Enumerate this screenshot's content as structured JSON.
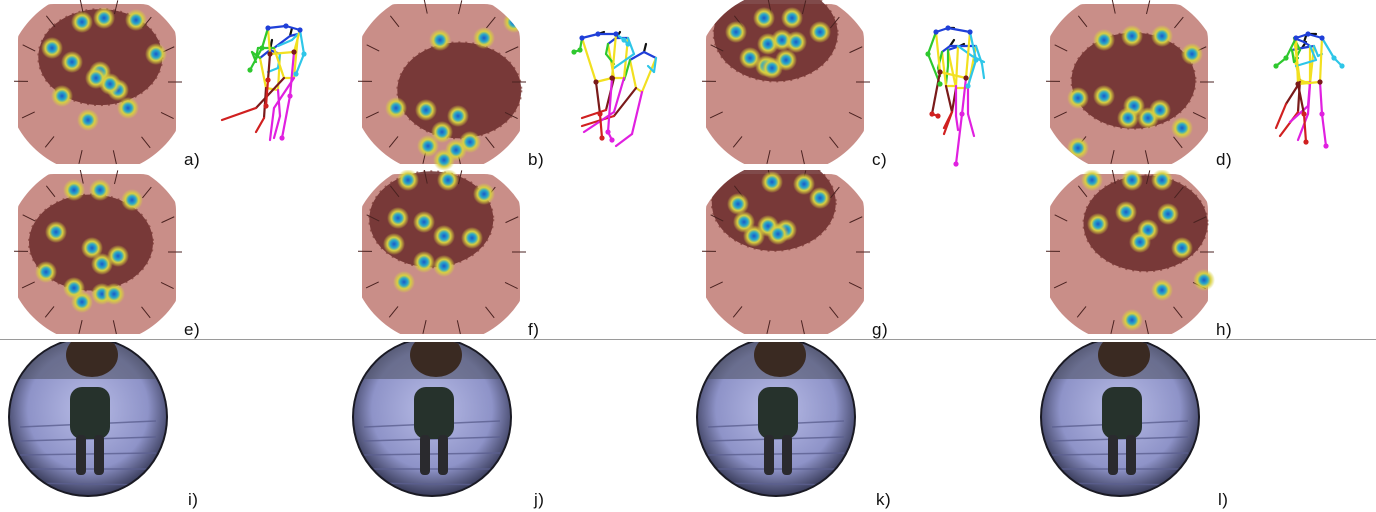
{
  "panels": [
    {
      "label": "a)"
    },
    {
      "label": "b)"
    },
    {
      "label": "c)"
    },
    {
      "label": "d)"
    },
    {
      "label": "e)"
    },
    {
      "label": "f)"
    },
    {
      "label": "g)"
    },
    {
      "label": "h)"
    },
    {
      "label": "i)"
    },
    {
      "label": "j)"
    },
    {
      "label": "k)"
    },
    {
      "label": "l)"
    }
  ],
  "colors": {
    "heat_bg": "#c98e88",
    "heat_dark": "#7a3b36",
    "shirt": "#6a2a2a",
    "lens_floor": "#8e93c8",
    "lens_rim": "#1a1a24",
    "neck": "#111111",
    "head": "#1f3fd8",
    "spine": "#f2e020",
    "left_arm": "#2ec82e",
    "right_arm": "#2ec6e8",
    "left_leg": "#d02020",
    "left_thigh": "#7a1a1a",
    "right_leg": "#e020e0",
    "separator": "#9a9a9a"
  }
}
